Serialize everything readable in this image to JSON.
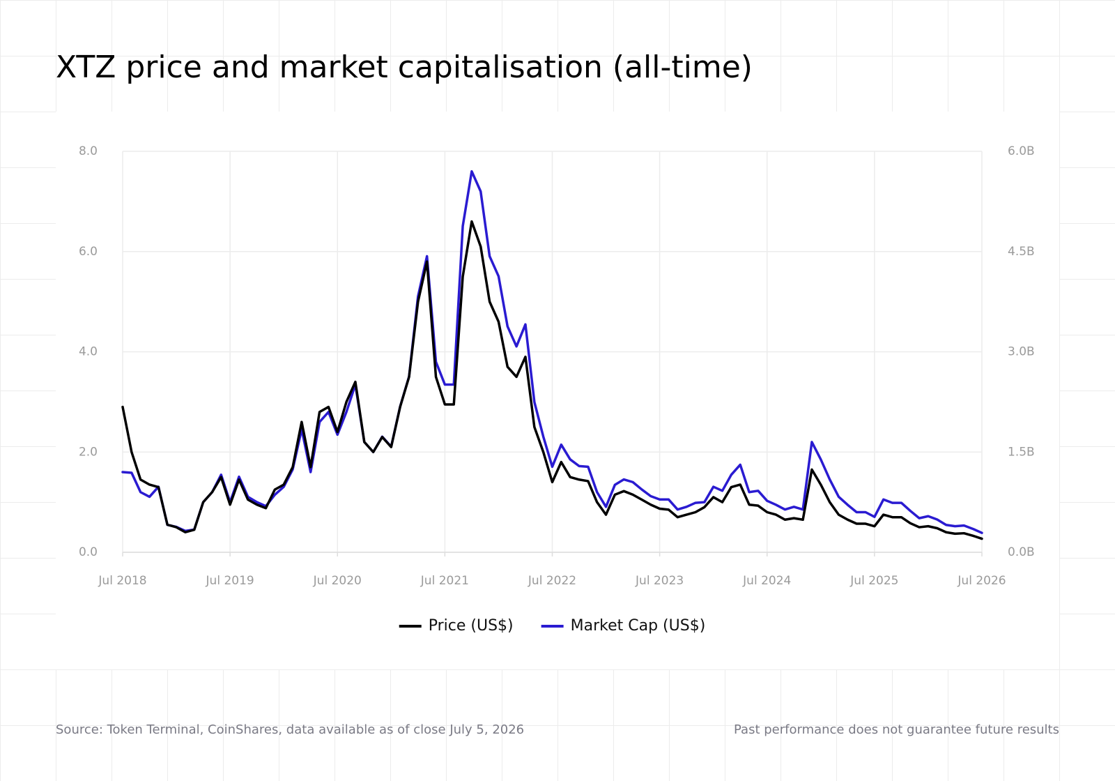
{
  "chart_data": {
    "type": "line",
    "title": "XTZ price and market capitalisation (all-time)",
    "x": [
      "2018-07",
      "2018-08",
      "2018-09",
      "2018-10",
      "2018-11",
      "2018-12",
      "2019-01",
      "2019-02",
      "2019-03",
      "2019-04",
      "2019-05",
      "2019-06",
      "2019-07",
      "2019-08",
      "2019-09",
      "2019-10",
      "2019-11",
      "2019-12",
      "2020-01",
      "2020-02",
      "2020-03",
      "2020-04",
      "2020-05",
      "2020-06",
      "2020-07",
      "2020-08",
      "2020-09",
      "2020-10",
      "2020-11",
      "2020-12",
      "2021-01",
      "2021-02",
      "2021-03",
      "2021-04",
      "2021-05",
      "2021-06",
      "2021-07",
      "2021-08",
      "2021-09",
      "2021-10",
      "2021-11",
      "2021-12",
      "2022-01",
      "2022-02",
      "2022-03",
      "2022-04",
      "2022-05",
      "2022-06",
      "2022-07",
      "2022-08",
      "2022-09",
      "2022-10",
      "2022-11",
      "2022-12",
      "2023-01",
      "2023-02",
      "2023-03",
      "2023-04",
      "2023-05",
      "2023-06",
      "2023-07",
      "2023-08",
      "2023-09",
      "2023-10",
      "2023-11",
      "2023-12",
      "2024-01",
      "2024-02",
      "2024-03",
      "2024-04",
      "2024-05",
      "2024-06",
      "2024-07",
      "2024-08",
      "2024-09",
      "2024-10",
      "2024-11",
      "2024-12",
      "2025-01",
      "2025-02",
      "2025-03",
      "2025-04",
      "2025-05",
      "2025-06",
      "2025-07",
      "2025-08",
      "2025-09",
      "2025-10",
      "2025-11",
      "2025-12",
      "2026-01",
      "2026-02",
      "2026-03",
      "2026-04",
      "2026-05",
      "2026-06",
      "2026-07"
    ],
    "series": [
      {
        "name": "Price (US$)",
        "color": "#000000",
        "values": [
          2.9,
          2.0,
          1.45,
          1.35,
          1.3,
          0.55,
          0.5,
          0.4,
          0.45,
          1.0,
          1.2,
          1.5,
          0.95,
          1.45,
          1.05,
          0.95,
          0.88,
          1.25,
          1.35,
          1.7,
          2.6,
          1.7,
          2.8,
          2.9,
          2.4,
          3.0,
          3.4,
          2.2,
          2.0,
          2.3,
          2.1,
          2.9,
          3.5,
          5.0,
          5.8,
          3.5,
          2.95,
          2.95,
          5.5,
          6.6,
          6.1,
          5.0,
          4.6,
          3.7,
          3.5,
          3.9,
          2.5,
          2.0,
          1.4,
          1.8,
          1.5,
          1.45,
          1.42,
          1.0,
          0.75,
          1.15,
          1.22,
          1.15,
          1.05,
          0.95,
          0.87,
          0.85,
          0.7,
          0.75,
          0.8,
          0.9,
          1.1,
          1.0,
          1.3,
          1.35,
          0.95,
          0.93,
          0.8,
          0.75,
          0.65,
          0.68,
          0.65,
          1.65,
          1.35,
          1.0,
          0.75,
          0.65,
          0.57,
          0.57,
          0.52,
          0.75,
          0.7,
          0.7,
          0.58,
          0.5,
          0.52,
          0.48,
          0.4,
          0.37,
          0.38,
          0.33,
          0.27
        ]
      },
      {
        "name": "Market Cap (US$)",
        "color": "#2a1bd1",
        "axis": "y2",
        "values": [
          1200000000.0,
          1190000000.0,
          900000000.0,
          830000000.0,
          980000000.0,
          410000000.0,
          380000000.0,
          320000000.0,
          340000000.0,
          750000000.0,
          900000000.0,
          1160000000.0,
          750000000.0,
          1130000000.0,
          830000000.0,
          750000000.0,
          690000000.0,
          860000000.0,
          980000000.0,
          1240000000.0,
          1840000000.0,
          1200000000.0,
          1950000000.0,
          2100000000.0,
          1760000000.0,
          2100000000.0,
          2510000000.0,
          1650000000.0,
          1500000000.0,
          1730000000.0,
          1580000000.0,
          2180000000.0,
          2630000000.0,
          3830000000.0,
          4430000000.0,
          2850000000.0,
          2510000000.0,
          2510000000.0,
          4880000000.0,
          5700000000.0,
          5400000000.0,
          4430000000.0,
          4130000000.0,
          3380000000.0,
          3080000000.0,
          3410000000.0,
          2250000000.0,
          1730000000.0,
          1280000000.0,
          1610000000.0,
          1390000000.0,
          1290000000.0,
          1280000000.0,
          900000000.0,
          680000000.0,
          1010000000.0,
          1090000000.0,
          1050000000.0,
          940000000.0,
          840000000.0,
          790000000.0,
          790000000.0,
          640000000.0,
          680000000.0,
          740000000.0,
          750000000.0,
          980000000.0,
          920000000.0,
          1160000000.0,
          1310000000.0,
          900000000.0,
          920000000.0,
          770000000.0,
          710000000.0,
          640000000.0,
          680000000.0,
          640000000.0,
          1650000000.0,
          1390000000.0,
          1090000000.0,
          830000000.0,
          710000000.0,
          600000000.0,
          600000000.0,
          530000000.0,
          790000000.0,
          740000000.0,
          740000000.0,
          620000000.0,
          510000000.0,
          540000000.0,
          490000000.0,
          410000000.0,
          390000000.0,
          400000000.0,
          350000000.0,
          290000000.0
        ]
      }
    ],
    "xlim": [
      "2018-07",
      "2026-07"
    ],
    "xticks": [
      {
        "value": "2018-07",
        "label": "Jul 2018"
      },
      {
        "value": "2019-07",
        "label": "Jul 2019"
      },
      {
        "value": "2020-07",
        "label": "Jul 2020"
      },
      {
        "value": "2021-07",
        "label": "Jul 2021"
      },
      {
        "value": "2022-07",
        "label": "Jul 2022"
      },
      {
        "value": "2023-07",
        "label": "Jul 2023"
      },
      {
        "value": "2024-07",
        "label": "Jul 2024"
      },
      {
        "value": "2025-07",
        "label": "Jul 2025"
      },
      {
        "value": "2026-07",
        "label": "Jul 2026"
      }
    ],
    "ylim": [
      0,
      8
    ],
    "yticks": [
      {
        "value": 0,
        "label": "0.0"
      },
      {
        "value": 2,
        "label": "2.0"
      },
      {
        "value": 4,
        "label": "4.0"
      },
      {
        "value": 6,
        "label": "6.0"
      },
      {
        "value": 8,
        "label": "8.0"
      }
    ],
    "y2lim": [
      0,
      6000000000.0
    ],
    "y2ticks": [
      {
        "value": 0,
        "label": "0.0B"
      },
      {
        "value": 1500000000.0,
        "label": "1.5B"
      },
      {
        "value": 3000000000.0,
        "label": "3.0B"
      },
      {
        "value": 4500000000.0,
        "label": "4.5B"
      },
      {
        "value": 6000000000.0,
        "label": "6.0B"
      }
    ],
    "grid": true,
    "legend": "bottom",
    "source": "Source: Token Terminal, CoinShares, data available as of close July 5, 2026",
    "disclaimer": "Past performance does not guarantee future results"
  }
}
